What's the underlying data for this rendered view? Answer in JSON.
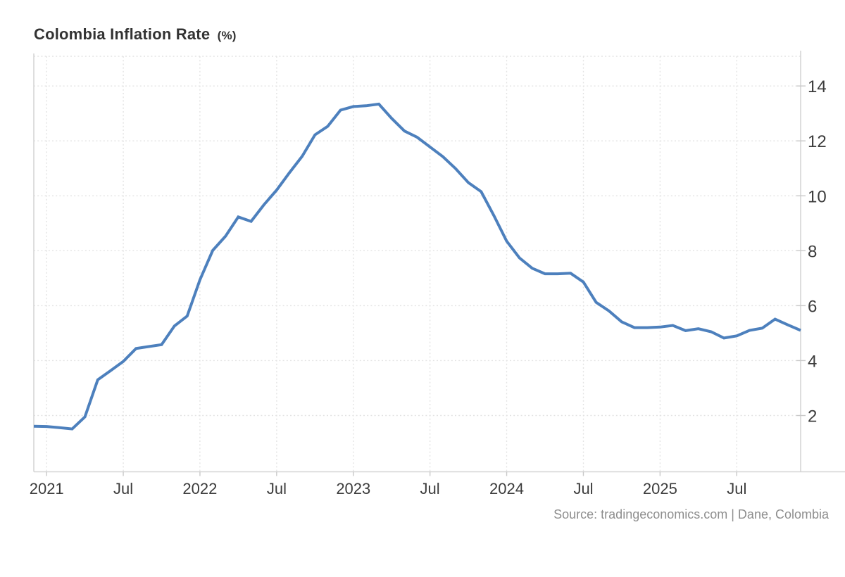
{
  "header": {
    "title": "Colombia Inflation Rate",
    "unit": "(%)"
  },
  "footer": {
    "source": "Source: tradingeconomics.com | Dane, Colombia"
  },
  "colors": {
    "line": "#4d80bd",
    "grid": "#e3e3e3",
    "axis": "#d4d4d4",
    "tick": "#c9c9c9",
    "tick_label": "#3c3c3c",
    "title": "#333333",
    "source": "#8e8e8e",
    "background": "#ffffff"
  },
  "chart_data": {
    "type": "line",
    "title": "Colombia Inflation Rate (%)",
    "x_unit": "month",
    "y_axis_side": "right",
    "grid": "dotted",
    "legend": "none",
    "ylim": [
      -0.05,
      15.08
    ],
    "y_ticks": [
      2,
      4,
      6,
      8,
      10,
      12,
      14
    ],
    "x_ticks": [
      {
        "label": "2021",
        "index": 1
      },
      {
        "label": "Jul",
        "index": 7
      },
      {
        "label": "2022",
        "index": 13
      },
      {
        "label": "Jul",
        "index": 19
      },
      {
        "label": "2023",
        "index": 25
      },
      {
        "label": "Jul",
        "index": 31
      },
      {
        "label": "2024",
        "index": 37
      },
      {
        "label": "Jul",
        "index": 43
      },
      {
        "label": "2025",
        "index": 49
      },
      {
        "label": "Jul",
        "index": 55
      }
    ],
    "series": [
      {
        "name": "Inflation Rate (%)",
        "values": [
          1.61,
          1.6,
          1.56,
          1.51,
          1.95,
          3.3,
          3.63,
          3.97,
          4.44,
          4.51,
          4.58,
          5.26,
          5.62,
          6.94,
          8.01,
          8.53,
          9.23,
          9.07,
          9.67,
          10.21,
          10.84,
          11.44,
          12.22,
          12.53,
          13.12,
          13.25,
          13.28,
          13.34,
          12.82,
          12.36,
          12.13,
          11.78,
          11.43,
          10.99,
          10.48,
          10.15,
          9.28,
          8.35,
          7.74,
          7.36,
          7.16,
          7.16,
          7.18,
          6.86,
          6.12,
          5.81,
          5.41,
          5.2,
          5.2,
          5.22,
          5.28,
          5.09,
          5.16,
          5.05,
          4.82,
          4.9,
          5.1,
          5.18,
          5.51,
          5.3,
          5.1
        ]
      }
    ]
  }
}
